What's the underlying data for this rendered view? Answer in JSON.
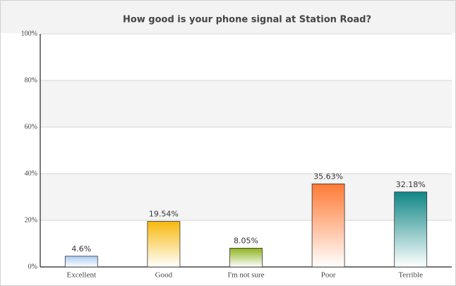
{
  "chart_data": {
    "type": "bar",
    "title": "How good is your phone signal at Station Road?",
    "categories": [
      "Excellent",
      "Good",
      "I'm not sure",
      "Poor",
      "Terrible"
    ],
    "values": [
      4.6,
      19.54,
      8.05,
      35.63,
      32.18
    ],
    "value_labels": [
      "4.6%",
      "19.54%",
      "8.05%",
      "35.63%",
      "32.18%"
    ],
    "colors": [
      "#a9cdf5",
      "#f6b90c",
      "#8db31d",
      "#ff7a35",
      "#0f8686"
    ],
    "ylim": [
      0,
      100
    ],
    "yticks": [
      {
        "value": 0,
        "label": "0%"
      },
      {
        "value": 20,
        "label": "20%"
      },
      {
        "value": 40,
        "label": "40%"
      },
      {
        "value": 60,
        "label": "60%"
      },
      {
        "value": 80,
        "label": "80%"
      },
      {
        "value": 100,
        "label": "100%"
      }
    ],
    "grid": true
  }
}
